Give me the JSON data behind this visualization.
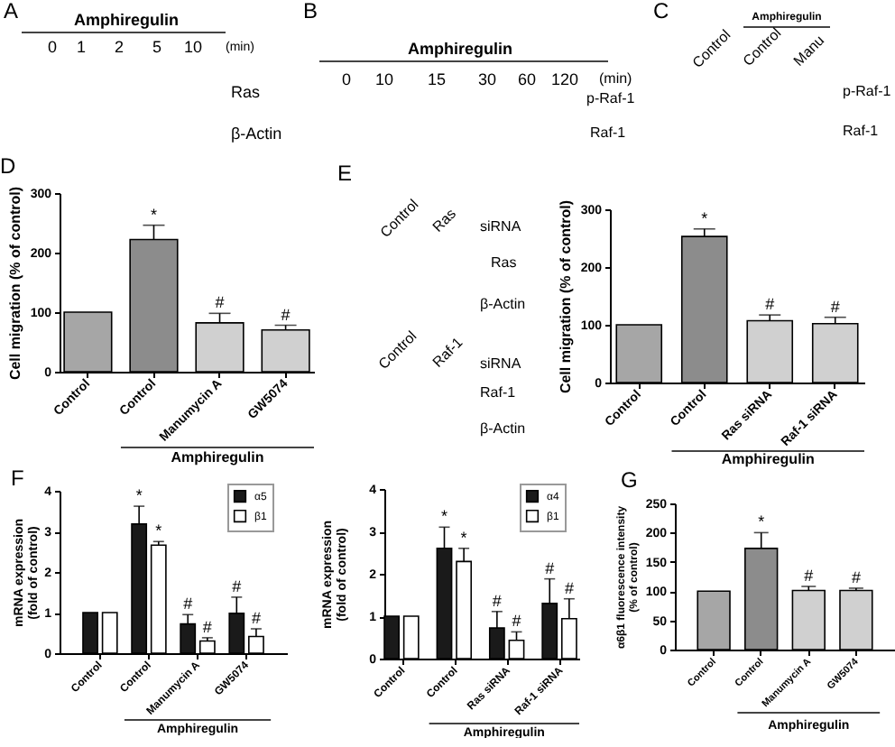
{
  "chart_data": [
    {
      "type": "other",
      "title": "A",
      "annotations": [
        "Amphiregulin",
        "0",
        "1",
        "2",
        "5",
        "10",
        "(min)",
        "Ras",
        "β-Actin"
      ]
    },
    {
      "type": "other",
      "title": "B",
      "annotations": [
        "Amphiregulin",
        "0",
        "10",
        "15",
        "30",
        "60",
        "120",
        "(min)",
        "p-Raf-1",
        "Raf-1"
      ]
    },
    {
      "type": "other",
      "title": "C",
      "annotations": [
        "Amphiregulin",
        "Control",
        "Control",
        "Manu",
        "p-Raf-1",
        "Raf-1"
      ]
    },
    {
      "type": "bar",
      "title": "D",
      "ylabel": "Cell migration (% of control)",
      "categories": [
        "Control",
        "Control",
        "Manumycin A",
        "GW5074"
      ],
      "values": [
        100,
        222,
        82,
        70
      ],
      "colors": [
        "#a6a6a6",
        "#8c8c8c",
        "#d0d0d0",
        "#d0d0d0"
      ],
      "errors": [
        null,
        [
          222,
          246
        ],
        [
          82,
          98
        ],
        [
          70,
          78
        ]
      ],
      "value_labels": [
        null,
        "*",
        "#",
        "#"
      ],
      "annotations": [
        "Amphiregulin"
      ],
      "ylim": [
        0,
        300
      ],
      "yticks": [
        0,
        100,
        200,
        300
      ]
    },
    {
      "type": "other",
      "title": "E",
      "annotations": [
        "Control",
        "Ras",
        "siRNA",
        "Ras",
        "β-Actin",
        "Control",
        "Raf-1",
        "siRNA",
        "Raf-1",
        "β-Actin"
      ]
    },
    {
      "type": "bar",
      "ylabel": "Cell migration (% of control)",
      "categories": [
        "Control",
        "Control",
        "Ras siRNA",
        "Raf-1 siRNA"
      ],
      "values": [
        100,
        253,
        107,
        102
      ],
      "colors": [
        "#a6a6a6",
        "#8c8c8c",
        "#d0d0d0",
        "#d0d0d0"
      ],
      "errors": [
        null,
        [
          253,
          266
        ],
        [
          107,
          117
        ],
        [
          102,
          113
        ]
      ],
      "value_labels": [
        null,
        "*",
        "#",
        "#"
      ],
      "annotations": [
        "Amphiregulin"
      ],
      "ylim": [
        0,
        300
      ],
      "yticks": [
        0,
        100,
        200,
        300
      ]
    },
    {
      "type": "bar",
      "title": "F",
      "ylabel": "mRNA expression\n(fold of control)",
      "categories": [
        "Control",
        "Control",
        "Manumycin A",
        "GW5074"
      ],
      "series": [
        {
          "name": "α5",
          "color": "#1a1a1a",
          "values": [
            1,
            3.18,
            0.72,
            0.98
          ],
          "errors": [
            null,
            [
              3.18,
              3.62
            ],
            [
              0.72,
              0.95
            ],
            [
              0.98,
              1.38
            ]
          ],
          "value_labels": [
            null,
            "*",
            "#",
            "#"
          ]
        },
        {
          "name": "β1",
          "color": "#ffffff",
          "values": [
            1,
            2.66,
            0.3,
            0.41
          ],
          "errors": [
            null,
            [
              2.66,
              2.75
            ],
            [
              0.3,
              0.38
            ],
            [
              0.41,
              0.6
            ]
          ],
          "value_labels": [
            null,
            "*",
            "#",
            "#"
          ]
        }
      ],
      "annotations": [
        "Amphiregulin"
      ],
      "ylim": [
        0,
        4
      ],
      "yticks": [
        0,
        1,
        2,
        3,
        4
      ],
      "legend": "top right"
    },
    {
      "type": "bar",
      "ylabel": "mRNA expression\n(fold of control)",
      "categories": [
        "Control",
        "Control",
        "Ras siRNA",
        "Raf-1 siRNA"
      ],
      "series": [
        {
          "name": "α4",
          "color": "#1a1a1a",
          "values": [
            1,
            2.6,
            0.72,
            1.3
          ],
          "errors": [
            null,
            [
              2.6,
              3.1
            ],
            [
              0.72,
              1.11
            ],
            [
              1.3,
              1.88
            ]
          ],
          "value_labels": [
            null,
            "*",
            "#",
            "#"
          ]
        },
        {
          "name": "β1",
          "color": "#ffffff",
          "values": [
            1,
            2.29,
            0.43,
            0.94
          ],
          "errors": [
            null,
            [
              2.29,
              2.6
            ],
            [
              0.43,
              0.63
            ],
            [
              0.94,
              1.41
            ]
          ],
          "value_labels": [
            null,
            "*",
            "#",
            "#"
          ]
        }
      ],
      "annotations": [
        "Amphiregulin"
      ],
      "ylim": [
        0,
        4
      ],
      "yticks": [
        0,
        1,
        2,
        3,
        4
      ],
      "legend": "top right"
    },
    {
      "type": "bar",
      "title": "G",
      "ylabel": "α6β1 fluorescence intensity\n(% of control)",
      "categories": [
        "Control",
        "Control",
        "Manumycin A",
        "GW5074"
      ],
      "values": [
        100,
        173,
        101,
        101
      ],
      "colors": [
        "#a6a6a6",
        "#8c8c8c",
        "#d0d0d0",
        "#d0d0d0"
      ],
      "errors": [
        null,
        [
          173,
          200
        ],
        [
          101,
          108
        ],
        [
          101,
          105
        ]
      ],
      "value_labels": [
        null,
        "*",
        "#",
        "#"
      ],
      "annotations": [
        "Amphiregulin"
      ],
      "ylim": [
        0,
        250
      ],
      "yticks": [
        0,
        50,
        100,
        150,
        200,
        250
      ]
    }
  ]
}
